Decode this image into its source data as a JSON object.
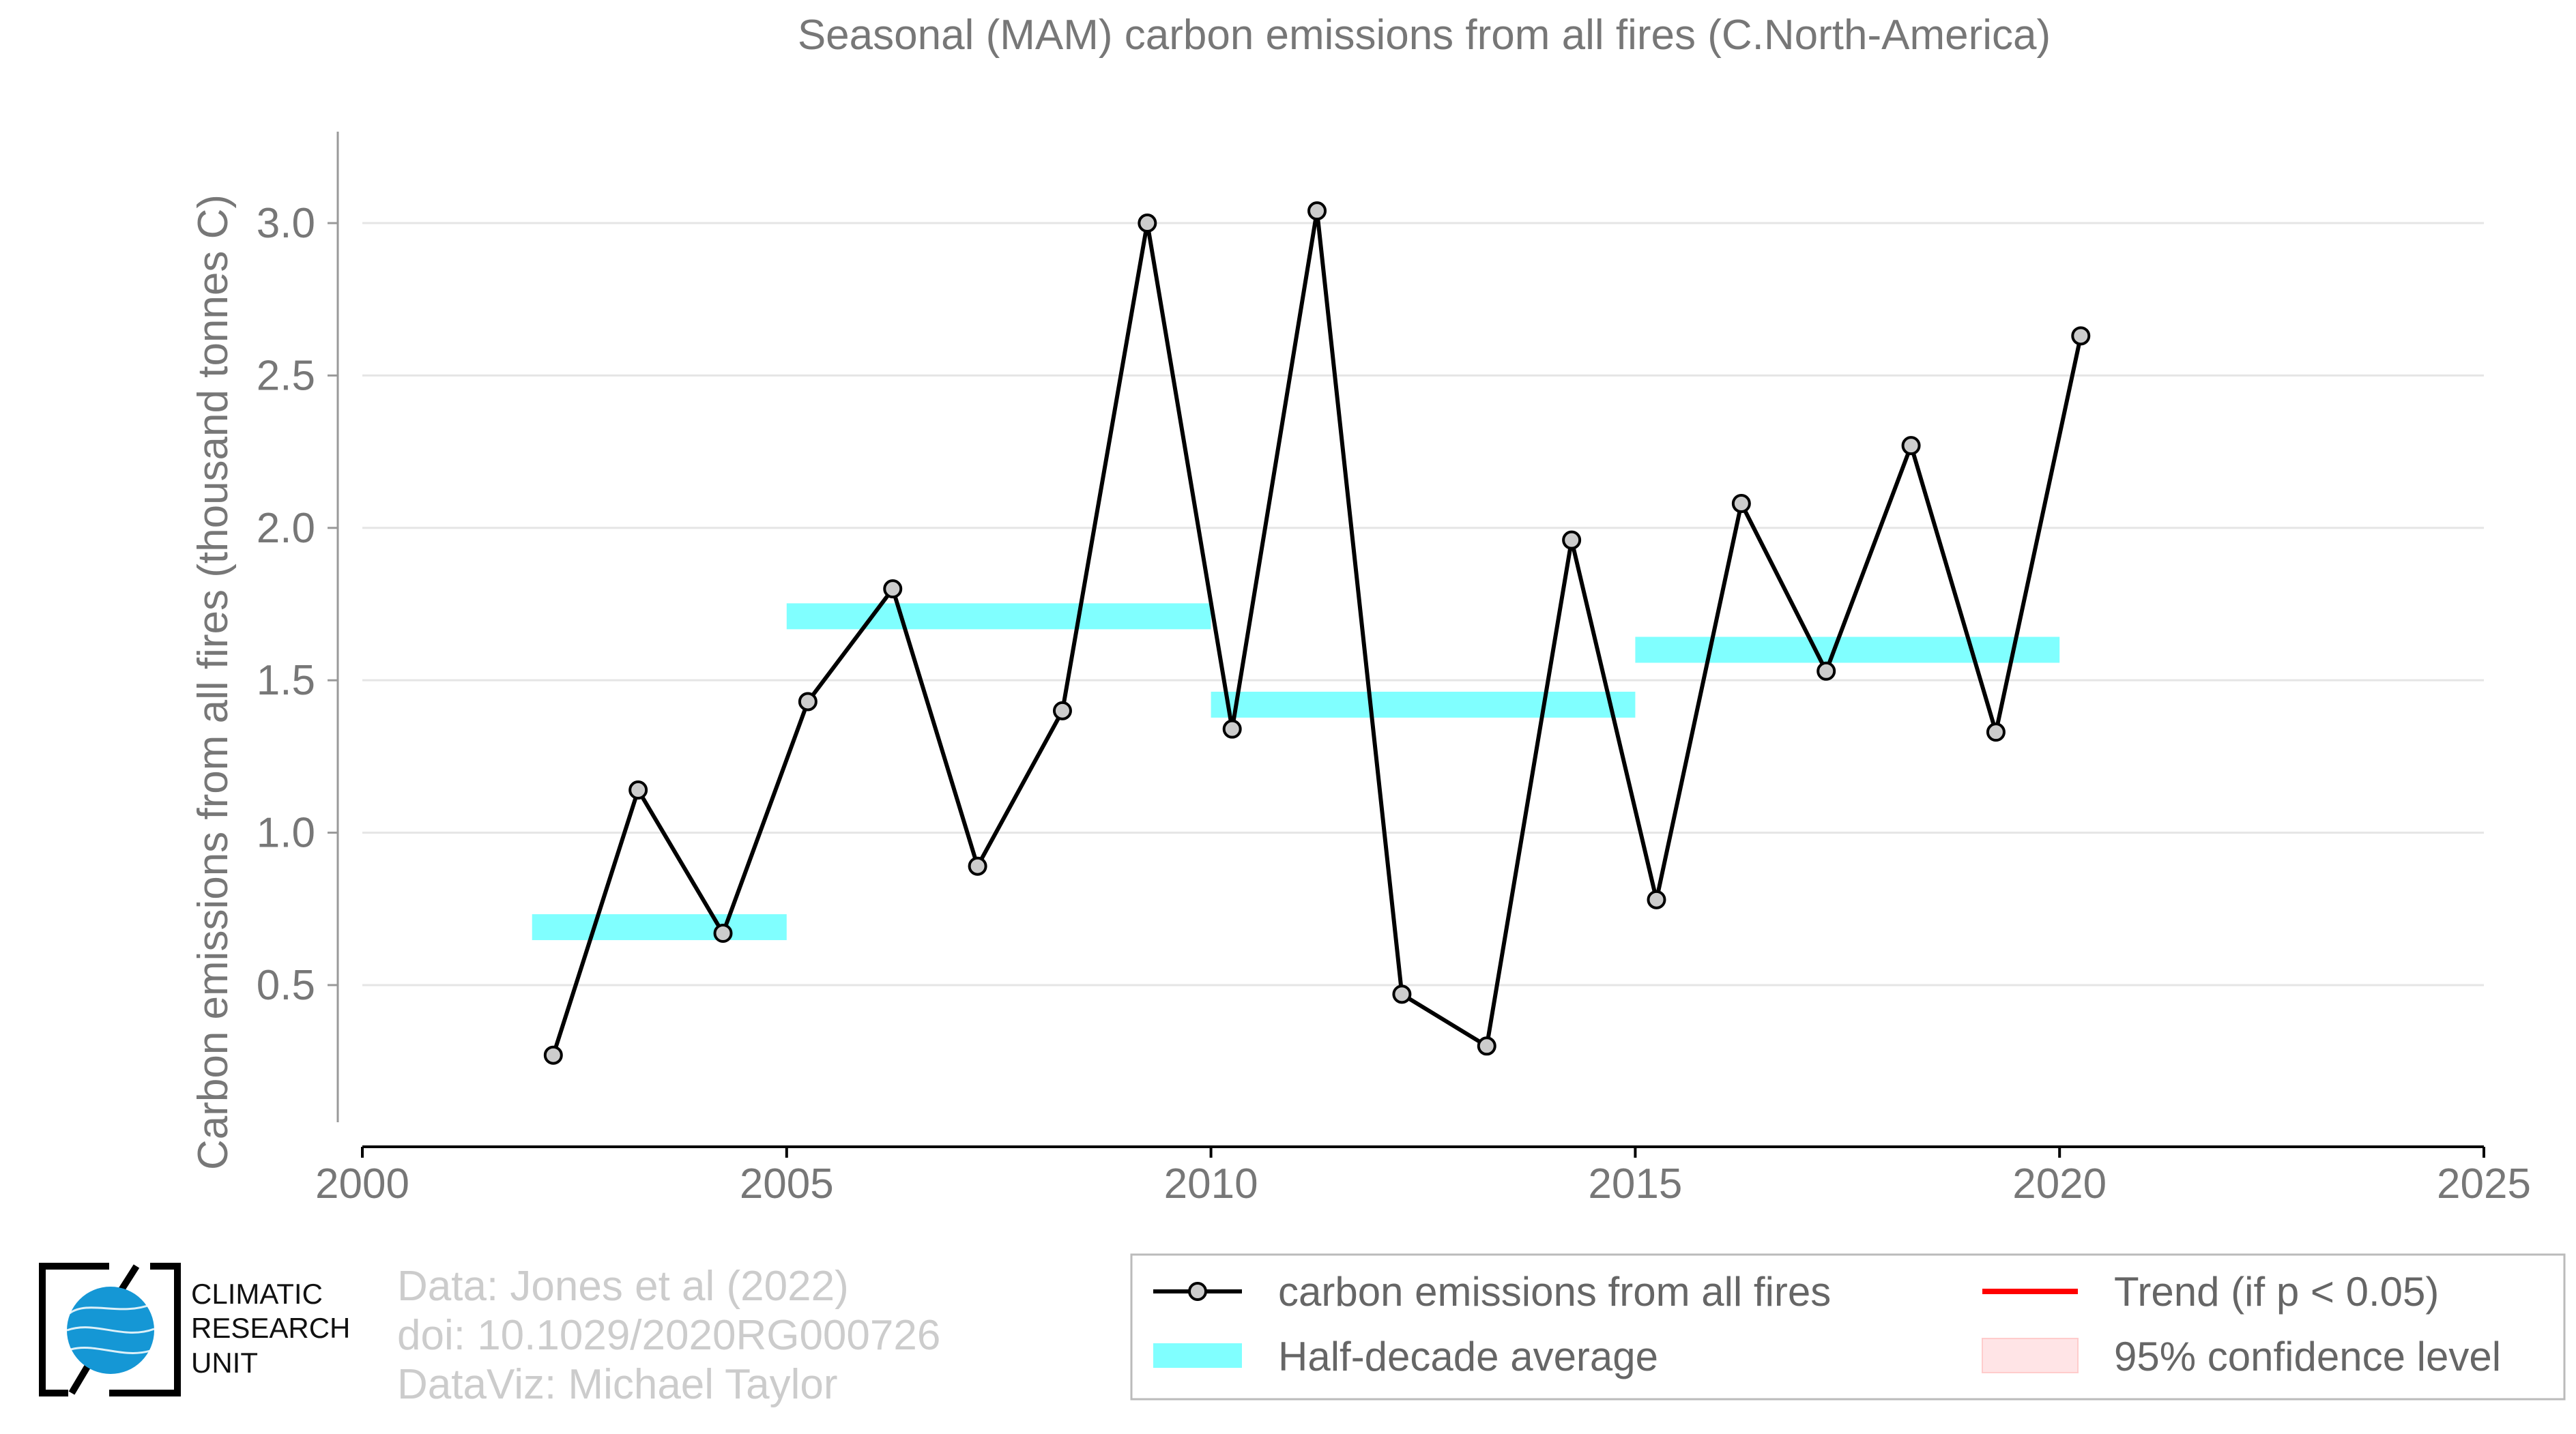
{
  "chart_data": {
    "type": "line",
    "title": "Seasonal (MAM) carbon emissions from all fires (C.North-America)",
    "ylabel": "Carbon emissions from all fires (thousand tonnes C)",
    "xlabel": "",
    "xlim": [
      2000,
      2025
    ],
    "ylim": [
      0.05,
      3.3
    ],
    "x_ticks": [
      "2000",
      "2005",
      "2010",
      "2015",
      "2020",
      "2025"
    ],
    "x_tick_values": [
      2000,
      2005,
      2010,
      2015,
      2020,
      2025
    ],
    "y_ticks": [
      "0.5",
      "1.0",
      "1.5",
      "2.0",
      "2.5",
      "3.0"
    ],
    "y_tick_values": [
      0.5,
      1.0,
      1.5,
      2.0,
      2.5,
      3.0
    ],
    "grid": "horizontal",
    "legend_position": "bottom-right",
    "colors": {
      "line": "#000000",
      "marker_fill": "#cccccc",
      "half_decade": "#80ffff",
      "trend": "#ff0000",
      "confidence": "#ffe4e6",
      "text": "#777777",
      "grid": "#e5e5e5"
    },
    "series": [
      {
        "name": "carbon emissions from all fires",
        "x": [
          2002.25,
          2003.25,
          2004.25,
          2005.25,
          2006.25,
          2007.25,
          2008.25,
          2009.25,
          2010.25,
          2011.25,
          2012.25,
          2013.25,
          2014.25,
          2015.25,
          2016.25,
          2017.25,
          2018.25,
          2019.25,
          2020.25
        ],
        "values": [
          0.27,
          1.14,
          0.67,
          1.43,
          1.8,
          0.89,
          1.4,
          3.0,
          1.34,
          3.04,
          0.47,
          0.3,
          1.96,
          0.78,
          2.08,
          1.53,
          2.27,
          1.33,
          2.63
        ]
      }
    ],
    "half_decade_averages": [
      {
        "x_start": 2002,
        "x_end": 2005,
        "value": 0.69
      },
      {
        "x_start": 2005,
        "x_end": 2010,
        "value": 1.71
      },
      {
        "x_start": 2010,
        "x_end": 2015,
        "value": 1.42
      },
      {
        "x_start": 2015,
        "x_end": 2020,
        "value": 1.6
      }
    ],
    "legend": {
      "series": "carbon emissions from all fires",
      "half_decade": "Half-decade average",
      "trend": "Trend (if p < 0.05)",
      "confidence": "95% confidence level"
    }
  },
  "logo": {
    "lines": [
      "CLIMATIC",
      "RESEARCH",
      "UNIT"
    ]
  },
  "credits": {
    "data": "Data: Jones et al (2022)",
    "doi": "doi: 10.1029/2020RG000726",
    "dataviz": "DataViz: Michael Taylor"
  }
}
